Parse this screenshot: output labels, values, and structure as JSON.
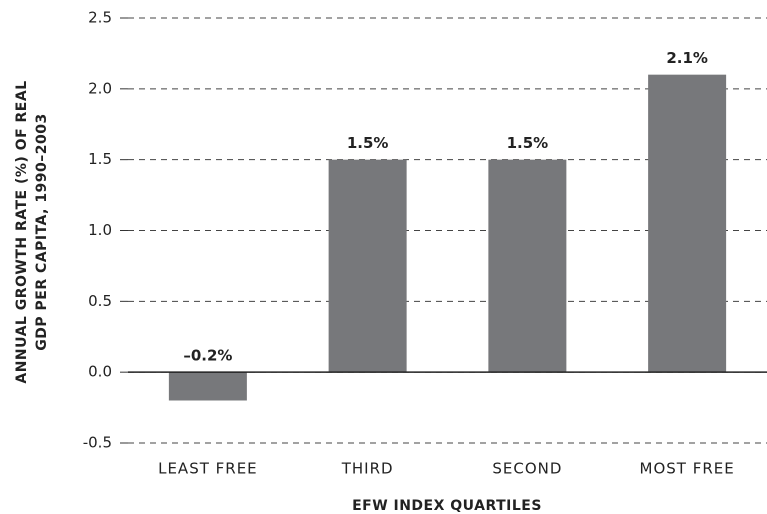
{
  "chart_data": {
    "type": "bar",
    "categories": [
      "LEAST FREE",
      "THIRD",
      "SECOND",
      "MOST FREE"
    ],
    "values": [
      -0.2,
      1.5,
      1.5,
      2.1
    ],
    "value_labels": [
      "–0.2%",
      "1.5%",
      "1.5%",
      "2.1%"
    ],
    "color": "#77787b",
    "ylim": [
      -0.5,
      2.5
    ],
    "yticks": [
      -0.5,
      {
        "value": 0,
        "label": "0.0"
      },
      0.5,
      {
        "value": 1,
        "label": "1.0"
      },
      1.5,
      {
        "value": 2,
        "label": "2.0"
      },
      2.5
    ],
    "grid": true,
    "xlabel": "EFW INDEX QUARTILES",
    "ylabel": [
      "ANNUAL GROWTH RATE (%) OF REAL",
      "GDP PER CAPITA, 1990–2003"
    ]
  }
}
